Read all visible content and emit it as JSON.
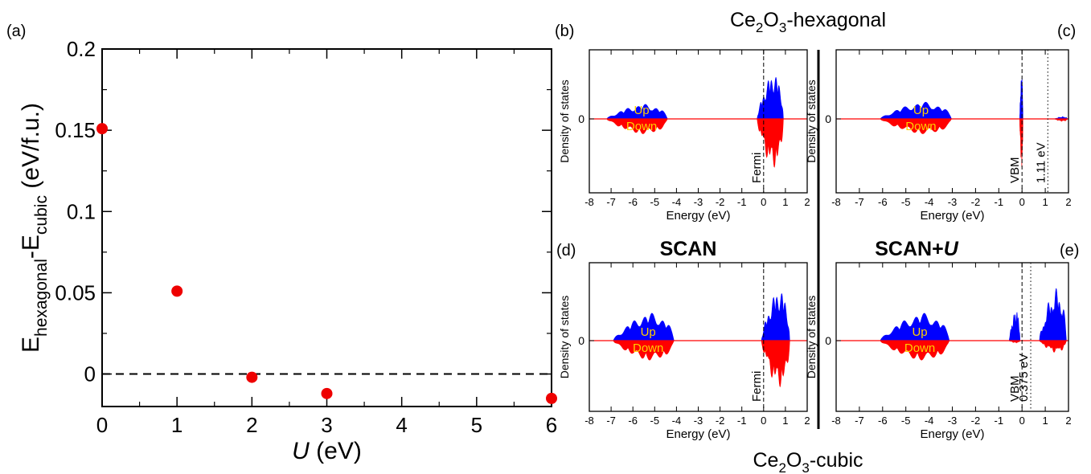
{
  "labels": {
    "top_title_main": "Ce",
    "top_title_sub1": "2",
    "top_title_mid": "O",
    "top_title_sub2": "3",
    "top_title_end": "-hexagonal",
    "bottom_title_main": "Ce",
    "bottom_title_sub1": "2",
    "bottom_title_mid": "O",
    "bottom_title_sub2": "3",
    "bottom_title_end": "-cubic",
    "col_scan": "SCAN",
    "col_scanu_main": "SCAN+",
    "col_scanu_u": "U"
  },
  "colors": {
    "up": "#0000ff",
    "down": "#ff0000",
    "zero_line": "#ff0000",
    "marker": "#ee0000"
  },
  "chart_data": [
    {
      "panel": "(a)",
      "type": "scatter",
      "xlabel_italic": "U",
      "xlabel_rest": " (eV)",
      "ylabel_parts": [
        "E",
        "hexagonal",
        "-E",
        "cubic",
        " (eV/f.u.)"
      ],
      "xlim": [
        0,
        6
      ],
      "ylim": [
        -0.02,
        0.2
      ],
      "x_ticks": [
        "0",
        "1",
        "2",
        "3",
        "4",
        "5",
        "6"
      ],
      "y_ticks": [
        "0",
        "0.05",
        "0.1",
        "0.15",
        "0.2"
      ],
      "reference_line": {
        "y": 0,
        "style": "dashed"
      },
      "points": [
        {
          "x": 0,
          "y": 0.151
        },
        {
          "x": 1,
          "y": 0.051
        },
        {
          "x": 2,
          "y": -0.002
        },
        {
          "x": 3,
          "y": -0.012
        },
        {
          "x": 6,
          "y": -0.015
        }
      ]
    },
    {
      "panel": "(b)",
      "type": "area",
      "phase": "hexagonal",
      "method": "SCAN",
      "xlabel": "Energy (eV)",
      "ylabel": "Density of states",
      "xlim": [
        -8,
        2
      ],
      "x_ticks": [
        "-8",
        "-7",
        "-6",
        "-5",
        "-4",
        "-3",
        "-2",
        "-1",
        "0",
        "1",
        "2"
      ],
      "y_ticks": [
        "0"
      ],
      "up_label": "Up",
      "down_label": "Down",
      "markers": [
        {
          "x": 0,
          "style": "dashed",
          "label": "Fermi"
        }
      ],
      "bands": [
        {
          "from": -7.2,
          "to": -4.2,
          "up_max": 0.33,
          "down_max": 0.33
        },
        {
          "from": -0.3,
          "to": 1.0,
          "up_max": 1.0,
          "down_max": 1.0
        }
      ]
    },
    {
      "panel": "(c)",
      "type": "area",
      "phase": "hexagonal",
      "method": "SCAN+U",
      "xlabel": "Energy (eV)",
      "ylabel": "Density of states",
      "xlim": [
        -8,
        2
      ],
      "x_ticks": [
        "-8",
        "-7",
        "-6",
        "-5",
        "-4",
        "-3",
        "-2",
        "-1",
        "0",
        "1",
        "2"
      ],
      "y_ticks": [
        "0"
      ],
      "up_label": "Up",
      "down_label": "Down",
      "markers": [
        {
          "x": 0,
          "style": "dashed",
          "label": "VBM"
        },
        {
          "x": 1.11,
          "style": "dotted",
          "label": "1.11 eV"
        }
      ],
      "bands": [
        {
          "from": -6.1,
          "to": -2.8,
          "up_max": 0.38,
          "down_max": 0.33
        },
        {
          "from": -0.1,
          "to": 0.05,
          "up_max": 1.0,
          "down_max": 1.0
        },
        {
          "from": 1.4,
          "to": 2.0,
          "up_max": 0.05,
          "down_max": 0.05
        }
      ]
    },
    {
      "panel": "(d)",
      "type": "area",
      "phase": "cubic",
      "method": "SCAN",
      "xlabel": "Energy (eV)",
      "ylabel": "Density of states",
      "xlim": [
        -8,
        2
      ],
      "x_ticks": [
        "-8",
        "-7",
        "-6",
        "-5",
        "-4",
        "-3",
        "-2",
        "-1",
        "0",
        "1",
        "2"
      ],
      "y_ticks": [
        "0"
      ],
      "up_label": "Up",
      "down_label": "Down",
      "markers": [
        {
          "x": 0,
          "style": "dashed",
          "label": "Fermi"
        }
      ],
      "bands": [
        {
          "from": -6.9,
          "to": -3.9,
          "up_max": 0.55,
          "down_max": 0.45
        },
        {
          "from": -0.1,
          "to": 1.3,
          "up_max": 1.0,
          "down_max": 1.0
        }
      ]
    },
    {
      "panel": "(e)",
      "type": "area",
      "phase": "cubic",
      "method": "SCAN+U",
      "xlabel": "Energy (eV)",
      "ylabel": "Density of states",
      "xlim": [
        -8,
        2
      ],
      "x_ticks": [
        "-8",
        "-7",
        "-6",
        "-5",
        "-4",
        "-3",
        "-2",
        "-1",
        "0",
        "1",
        "2"
      ],
      "y_ticks": [
        "0"
      ],
      "up_label": "Up",
      "down_label": "Down",
      "markers": [
        {
          "x": 0,
          "style": "dashed",
          "label": "VBM"
        },
        {
          "x": 0.375,
          "style": "dotted",
          "label": "0.375 eV"
        }
      ],
      "bands": [
        {
          "from": -6.1,
          "to": -2.9,
          "up_max": 0.55,
          "down_max": 0.45
        },
        {
          "from": -0.55,
          "to": -0.05,
          "up_max": 0.6,
          "down_max": 0.05
        },
        {
          "from": 0.75,
          "to": 2.0,
          "up_max": 1.0,
          "down_max": 0.25
        }
      ]
    }
  ]
}
